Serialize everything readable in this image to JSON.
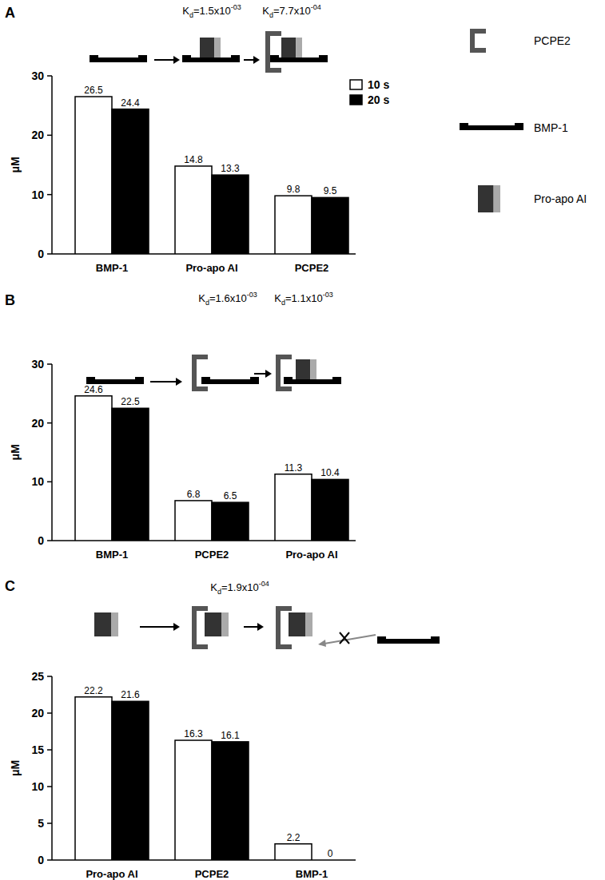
{
  "chart_data": [
    {
      "type": "bar",
      "panel_label": "A",
      "y_label": "μM",
      "categories": [
        "BMP-1",
        "Pro-apo AI",
        "PCPE2"
      ],
      "series": [
        {
          "name": "10 s",
          "color": "#ffffff",
          "values": [
            26.5,
            14.8,
            9.8
          ]
        },
        {
          "name": "20 s",
          "color": "#000000",
          "values": [
            24.4,
            13.3,
            9.5
          ]
        }
      ],
      "ylim": [
        0,
        30
      ],
      "yticks": [
        0,
        10,
        20,
        30
      ],
      "data_labels": true,
      "legend": "top-right",
      "annotations": [
        "Kd=1.5x10-03",
        "Kd=7.7x10-04"
      ]
    },
    {
      "type": "bar",
      "panel_label": "B",
      "y_label": "μM",
      "categories": [
        "BMP-1",
        "PCPE2",
        "Pro-apo AI"
      ],
      "series": [
        {
          "color": "#ffffff",
          "values": [
            24.6,
            6.8,
            11.3
          ]
        },
        {
          "color": "#000000",
          "values": [
            22.5,
            6.5,
            10.4
          ]
        }
      ],
      "ylim": [
        0,
        30
      ],
      "yticks": [
        0,
        10,
        20,
        30
      ],
      "data_labels": true,
      "annotations": [
        "Kd=1.6x10-03",
        "Kd=1.1x10-03"
      ]
    },
    {
      "type": "bar",
      "panel_label": "C",
      "y_label": "μM",
      "categories": [
        "Pro-apo AI",
        "PCPE2",
        "BMP-1"
      ],
      "series": [
        {
          "color": "#ffffff",
          "values": [
            22.2,
            16.3,
            2.2
          ]
        },
        {
          "color": "#000000",
          "values": [
            21.6,
            16.1,
            0
          ]
        }
      ],
      "ylim": [
        0,
        25
      ],
      "yticks": [
        0,
        5,
        10,
        15,
        20,
        25
      ],
      "data_labels": true,
      "annotations": [
        "Kd=1.9x10-04"
      ]
    }
  ],
  "key": [
    "PCPE2",
    "BMP-1",
    "Pro-apo AI"
  ]
}
